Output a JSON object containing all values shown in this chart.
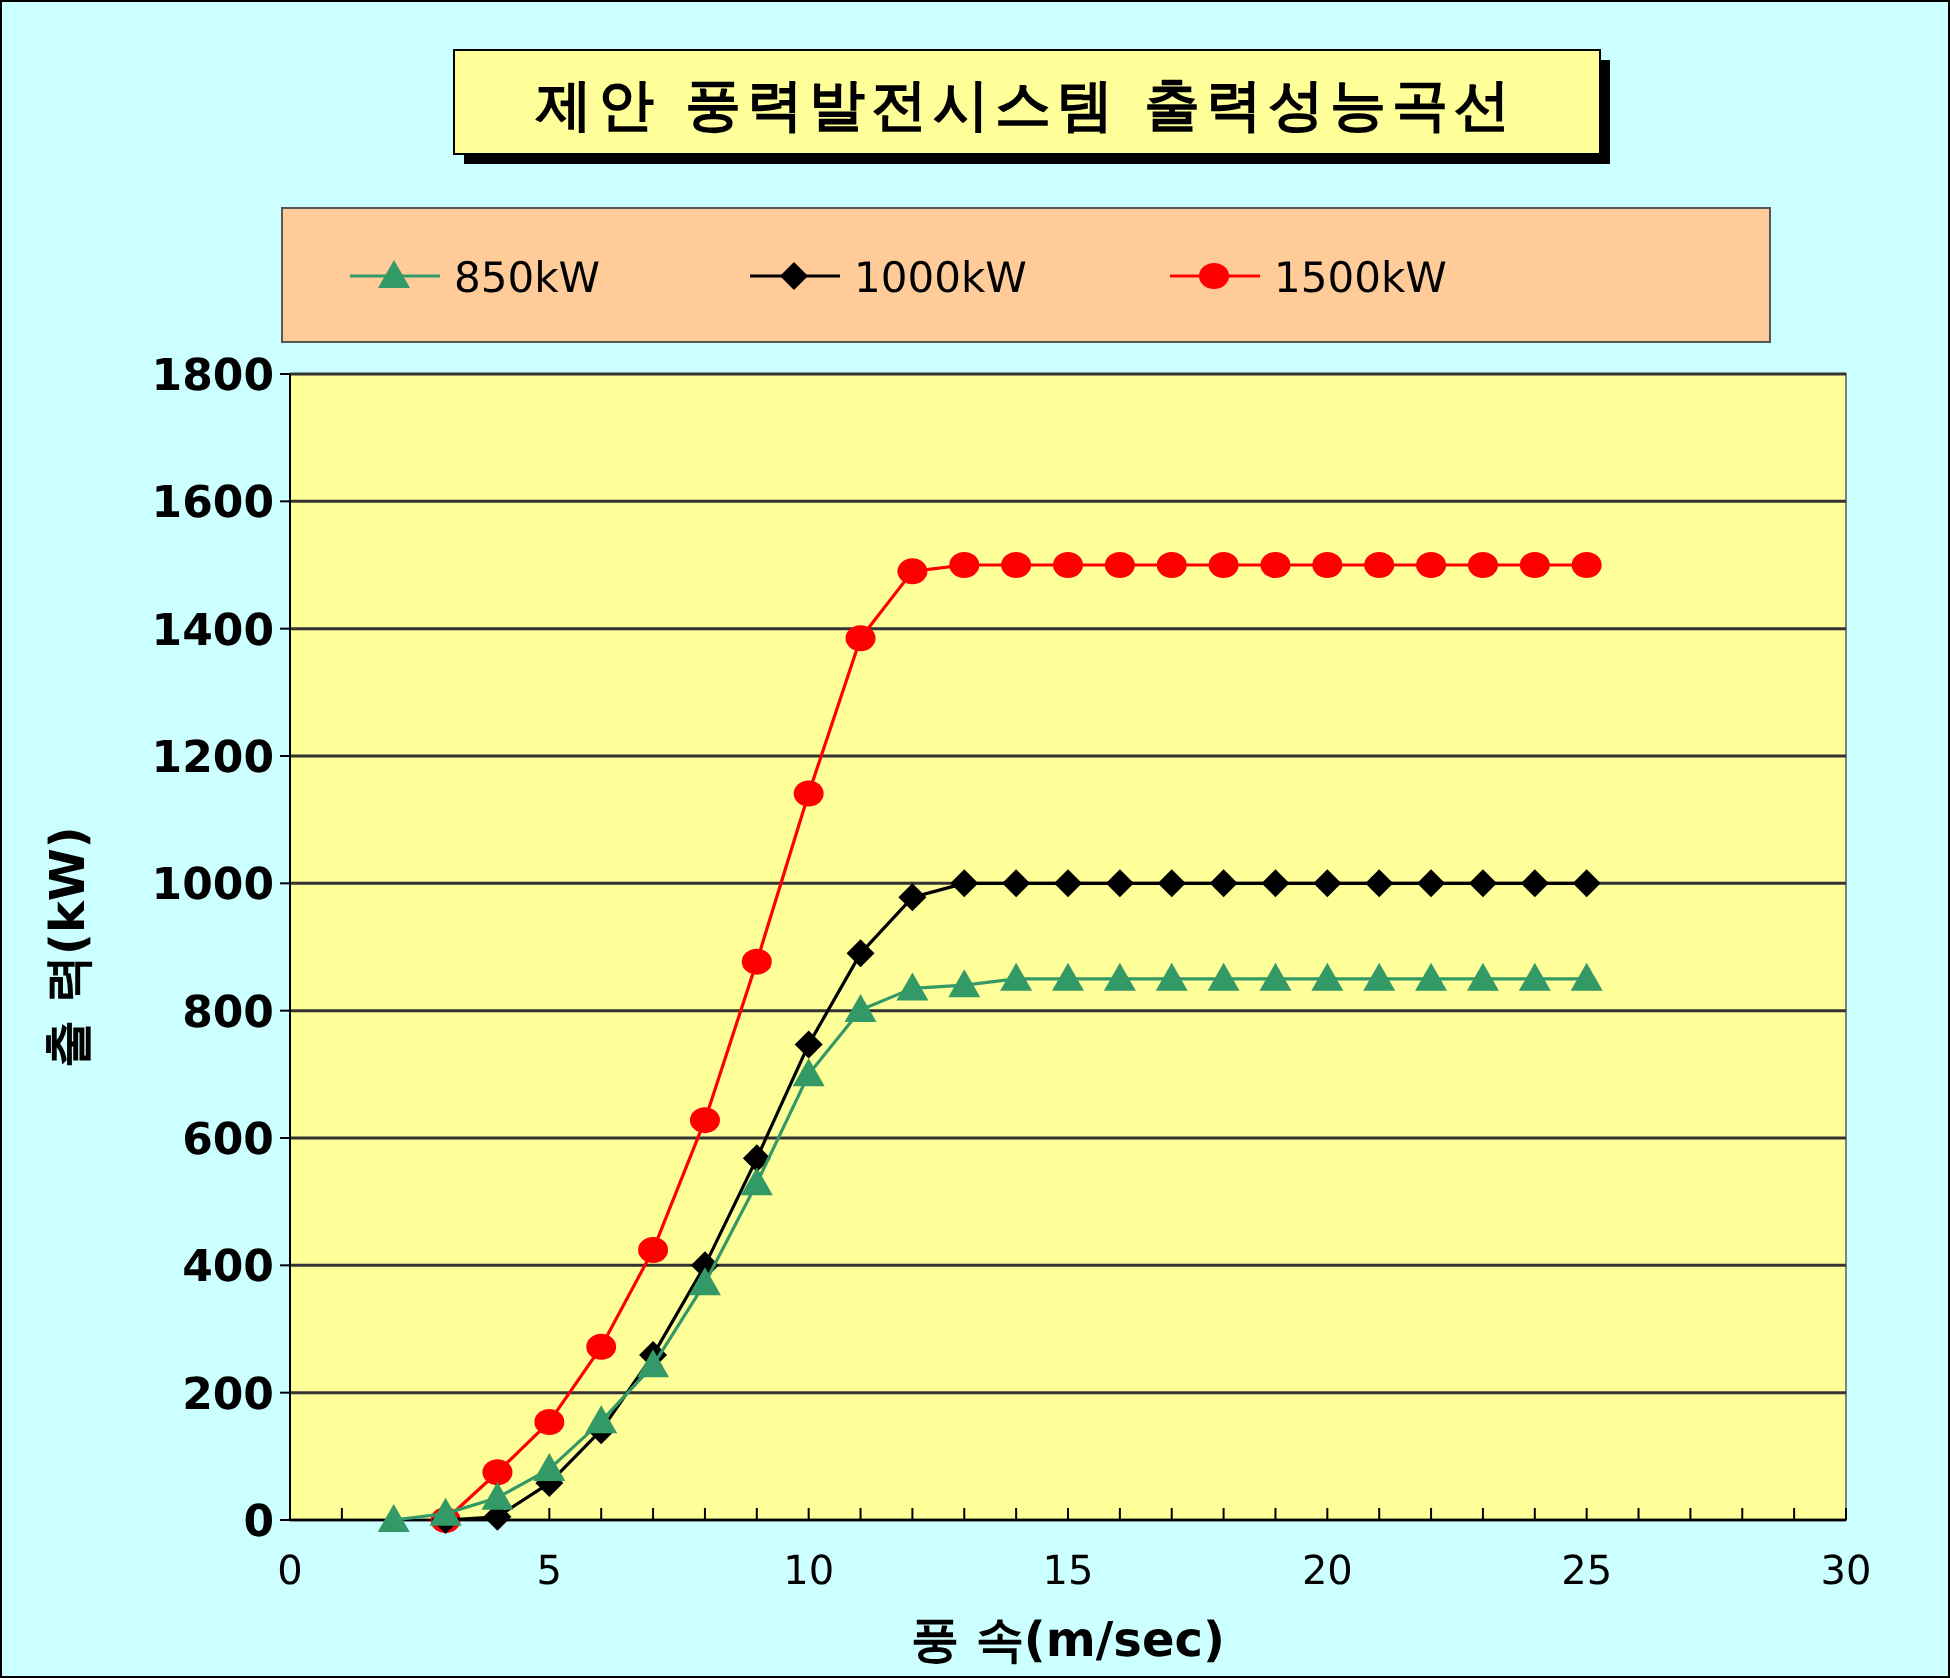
{
  "chart_data": {
    "type": "line",
    "title": "제안 풍력발전시스템 출력성능곡선",
    "xlabel": "풍 속(m/sec)",
    "ylabel": "출 력(kW)",
    "xlim": [
      0,
      30
    ],
    "ylim": [
      0,
      1800
    ],
    "xticks": [
      0,
      {
        "value": 1,
        "label": null
      },
      {
        "value": 2,
        "label": null
      },
      {
        "value": 3,
        "label": null
      },
      {
        "value": 4,
        "label": null
      },
      5,
      {
        "value": 6,
        "label": null
      },
      {
        "value": 7,
        "label": null
      },
      {
        "value": 8,
        "label": null
      },
      {
        "value": 9,
        "label": null
      },
      10,
      {
        "value": 11,
        "label": null
      },
      {
        "value": 12,
        "label": null
      },
      {
        "value": 13,
        "label": null
      },
      {
        "value": 14,
        "label": null
      },
      15,
      {
        "value": 16,
        "label": null
      },
      {
        "value": 17,
        "label": null
      },
      {
        "value": 18,
        "label": null
      },
      {
        "value": 19,
        "label": null
      },
      20,
      {
        "value": 21,
        "label": null
      },
      {
        "value": 22,
        "label": null
      },
      {
        "value": 23,
        "label": null
      },
      {
        "value": 24,
        "label": null
      },
      25,
      {
        "value": 26,
        "label": null
      },
      {
        "value": 27,
        "label": null
      },
      {
        "value": 28,
        "label": null
      },
      {
        "value": 29,
        "label": null
      },
      30
    ],
    "yticks": [
      0,
      200,
      400,
      600,
      800,
      1000,
      1200,
      1400,
      1600,
      1800
    ],
    "grid": "y",
    "legend": "top",
    "series": [
      {
        "name": "850kW",
        "color": "#339966",
        "marker": "triangle",
        "x": [
          2,
          3,
          4,
          5,
          6,
          7,
          8,
          9,
          10,
          11,
          12,
          13,
          14,
          15,
          16,
          17,
          18,
          19,
          20,
          21,
          22,
          23,
          24,
          25
        ],
        "values": [
          0,
          10,
          35,
          80,
          155,
          243,
          372,
          529,
          700,
          801,
          835,
          840,
          850,
          850,
          850,
          850,
          850,
          850,
          850,
          850,
          850,
          850,
          850,
          850
        ]
      },
      {
        "name": "1000kW",
        "color": "#000000",
        "marker": "diamond",
        "x": [
          3,
          4,
          5,
          6,
          7,
          8,
          9,
          10,
          11,
          12,
          13,
          14,
          15,
          16,
          17,
          18,
          19,
          20,
          21,
          22,
          23,
          24,
          25
        ],
        "values": [
          0,
          5,
          58,
          141,
          259,
          400,
          568,
          747,
          890,
          978,
          1000,
          1000,
          1000,
          1000,
          1000,
          1000,
          1000,
          1000,
          1000,
          1000,
          1000,
          1000,
          1000
        ]
      },
      {
        "name": "1500kW",
        "color": "#ff0000",
        "marker": "circle",
        "x": [
          3,
          4,
          5,
          6,
          7,
          8,
          9,
          10,
          11,
          12,
          13,
          14,
          15,
          16,
          17,
          18,
          19,
          20,
          21,
          22,
          23,
          24,
          25
        ],
        "values": [
          0,
          75,
          154,
          272,
          424,
          628,
          877,
          1141,
          1385,
          1490,
          1500,
          1500,
          1500,
          1500,
          1500,
          1500,
          1500,
          1500,
          1500,
          1500,
          1500,
          1500,
          1500
        ]
      }
    ]
  }
}
